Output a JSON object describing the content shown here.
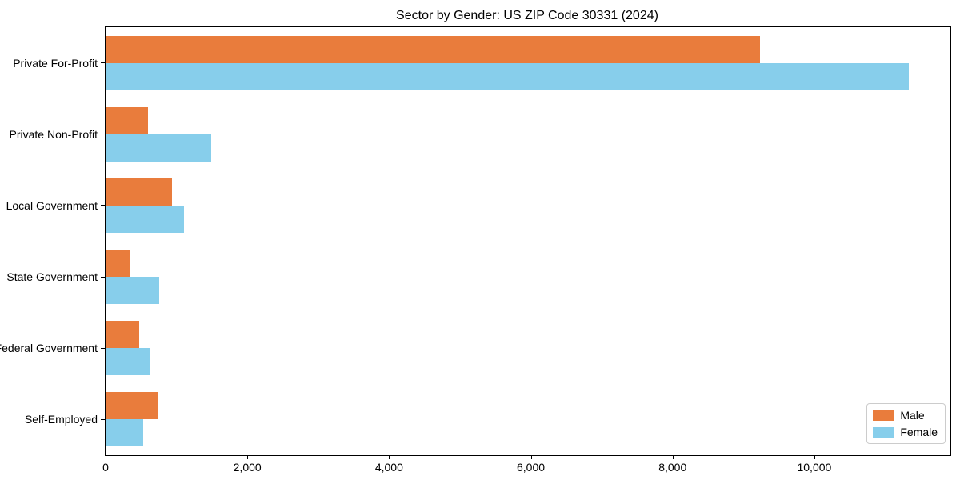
{
  "title": "Sector by Gender: US ZIP Code 30331 (2024)",
  "colors": {
    "male": "#E97C3C",
    "female": "#87CEEB",
    "axis": "#000000",
    "legend_border": "#cccccc",
    "background": "#ffffff"
  },
  "chart_data": {
    "type": "bar",
    "orientation": "horizontal",
    "title": "Sector by Gender: US ZIP Code 30331 (2024)",
    "categories": [
      "Private For-Profit",
      "Private Non-Profit",
      "Local Government",
      "State Government",
      "Federal Government",
      "Self-Employed"
    ],
    "series": [
      {
        "name": "Male",
        "color": "#E97C3C",
        "values": [
          9230,
          600,
          940,
          335,
          470,
          730
        ]
      },
      {
        "name": "Female",
        "color": "#87CEEB",
        "values": [
          11330,
          1490,
          1105,
          755,
          620,
          525
        ]
      }
    ],
    "xticks": {
      "values": [
        0,
        2000,
        4000,
        6000,
        8000,
        10000
      ],
      "labels": [
        "0",
        "2,000",
        "4,000",
        "6,000",
        "8,000",
        "10,000"
      ]
    },
    "xlim": [
      0,
      11920
    ],
    "xlabel": "",
    "ylabel": "",
    "grid": false,
    "legend_position": "lower right"
  },
  "legend": {
    "items": [
      {
        "label": "Male",
        "color": "#E97C3C"
      },
      {
        "label": "Female",
        "color": "#87CEEB"
      }
    ]
  }
}
